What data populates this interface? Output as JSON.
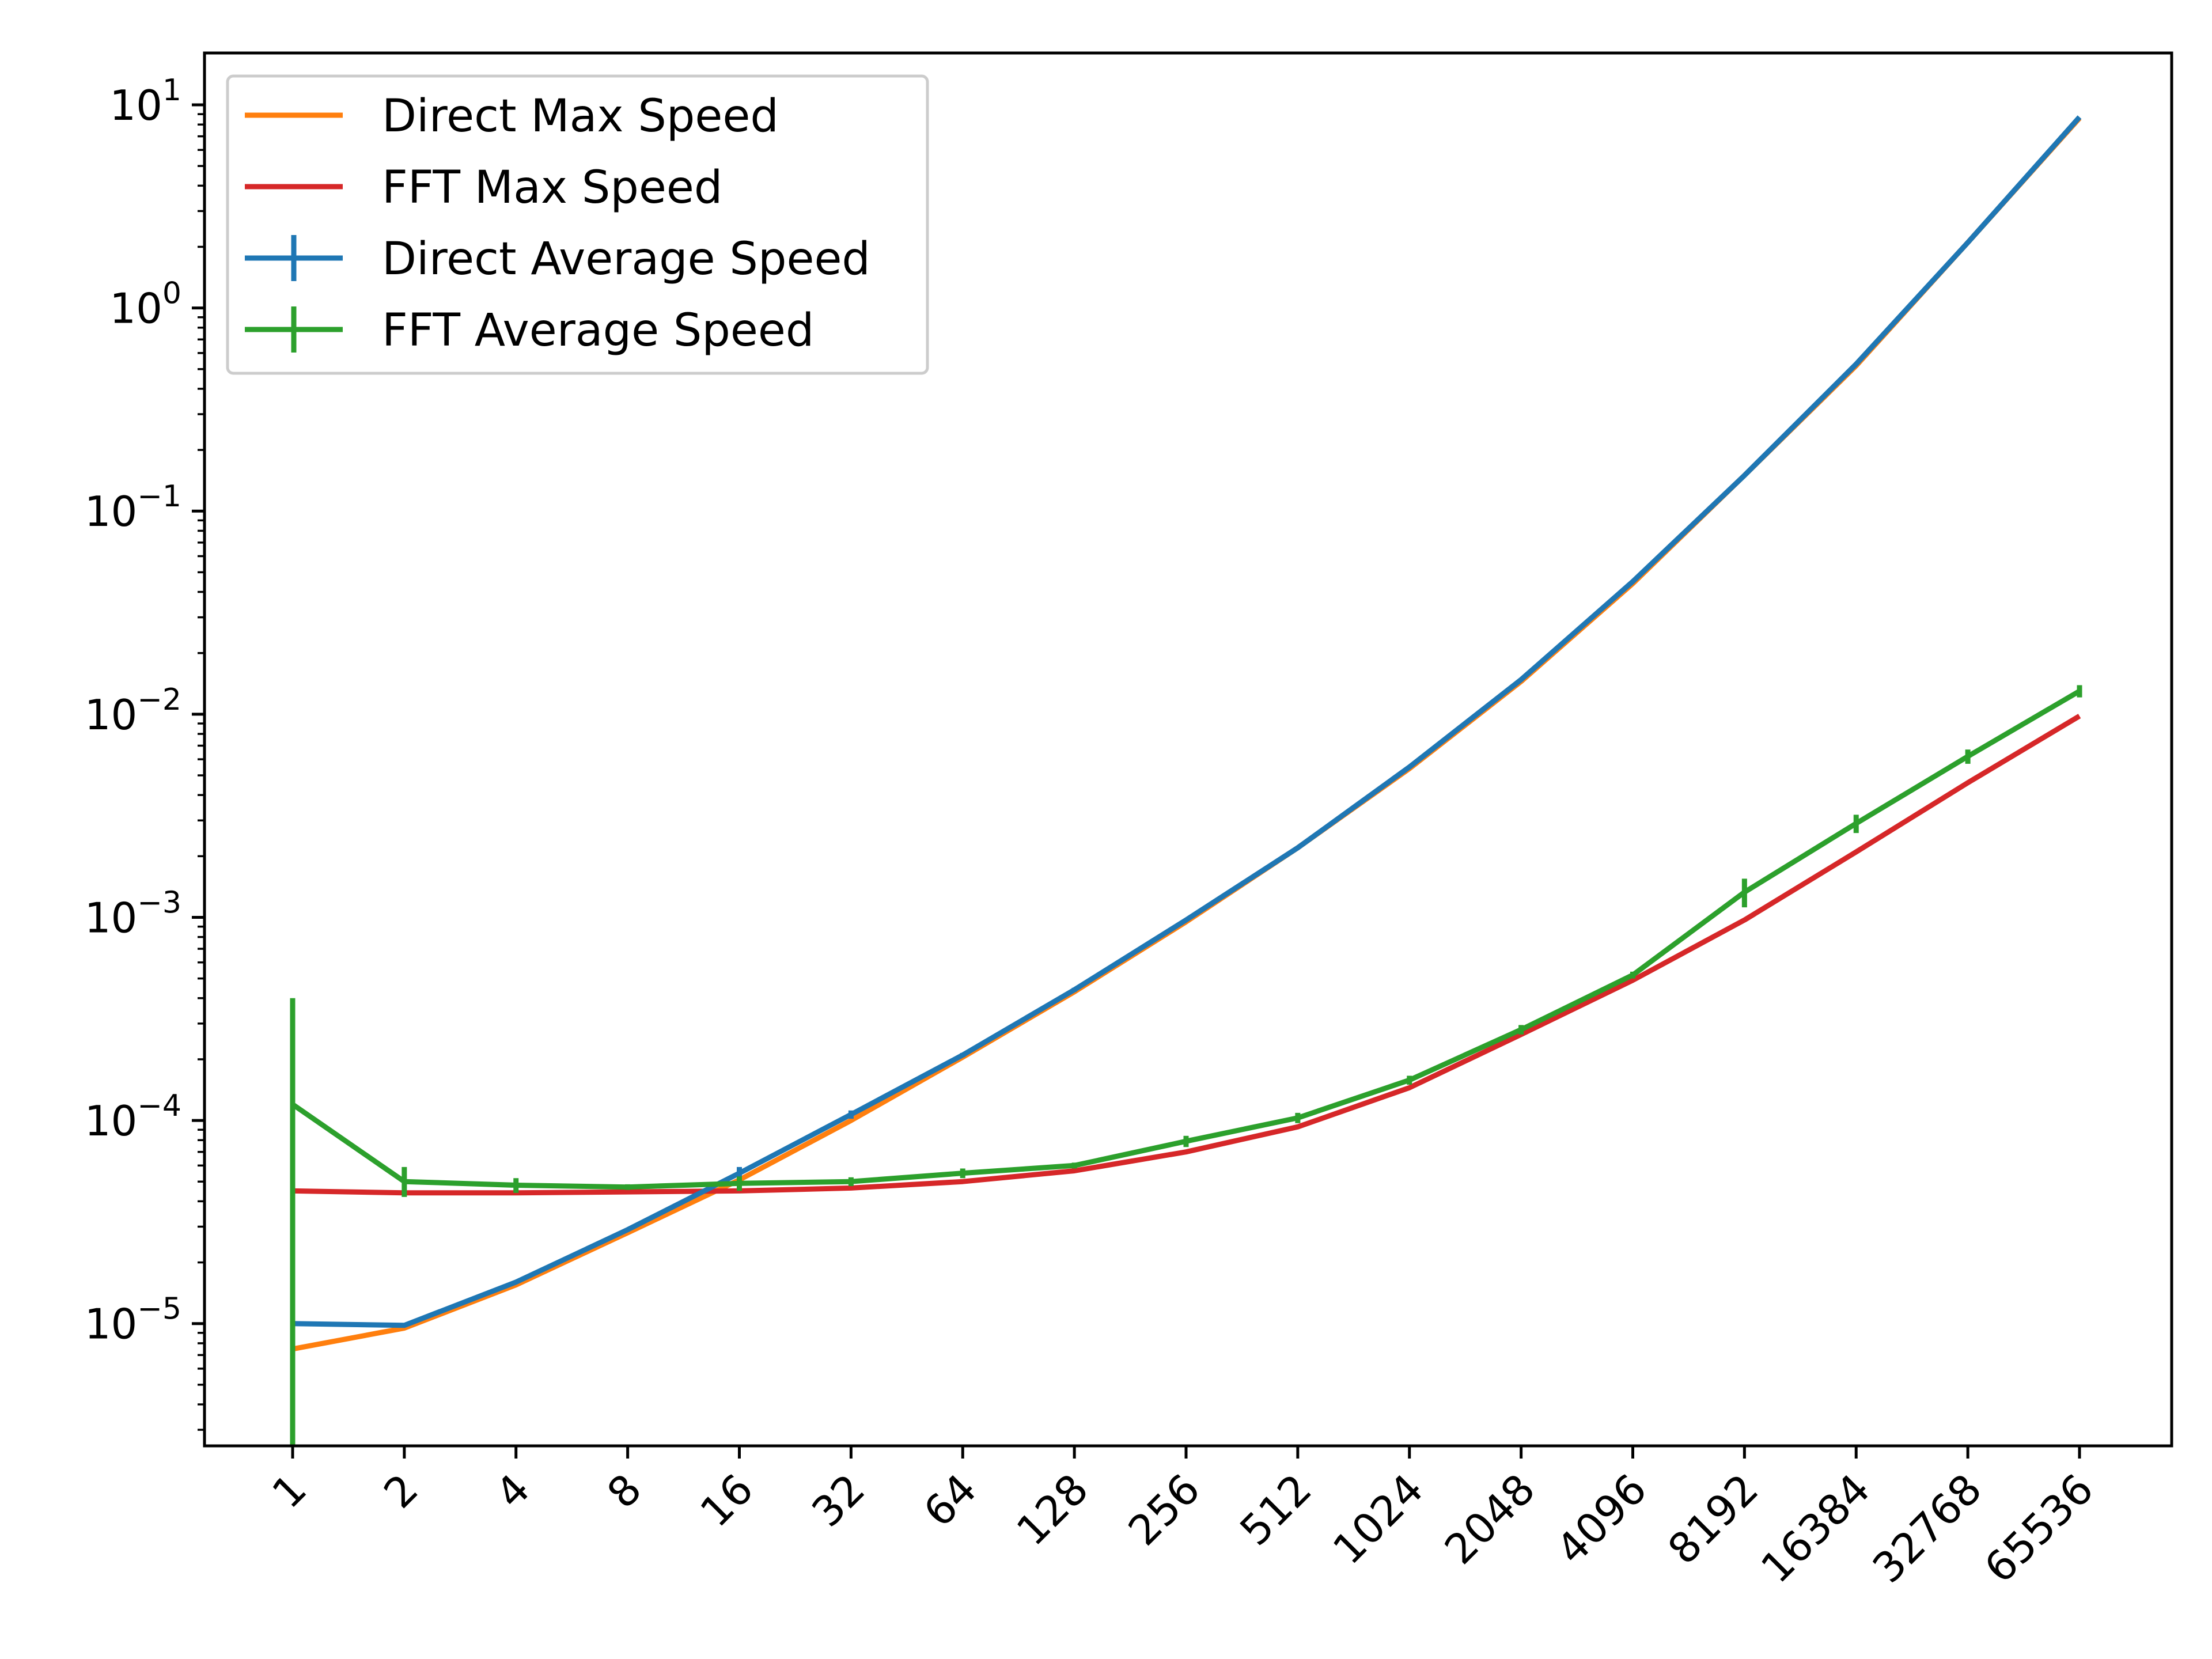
{
  "chart_data": {
    "type": "line",
    "title": "",
    "xlabel": "",
    "ylabel": "",
    "x_scale": "log2-categorical",
    "y_scale": "log",
    "categories": [
      "1",
      "2",
      "4",
      "8",
      "16",
      "32",
      "64",
      "128",
      "256",
      "512",
      "1024",
      "2048",
      "4096",
      "8192",
      "16384",
      "32768",
      "65536"
    ],
    "ylim": [
      2.5e-06,
      18
    ],
    "yticks": [
      {
        "base": "10",
        "exp": "−5",
        "value": 1e-05
      },
      {
        "base": "10",
        "exp": "−4",
        "value": 0.0001
      },
      {
        "base": "10",
        "exp": "−3",
        "value": 0.001
      },
      {
        "base": "10",
        "exp": "−2",
        "value": 0.01
      },
      {
        "base": "10",
        "exp": "−1",
        "value": 0.1
      },
      {
        "base": "10",
        "exp": "0",
        "value": 1
      },
      {
        "base": "10",
        "exp": "1",
        "value": 10
      }
    ],
    "grid": false,
    "legend_position": "top-left",
    "series": [
      {
        "name": "Direct Max Speed",
        "color": "#ff7f0e",
        "error_bars": false,
        "values": [
          7.5e-06,
          9.5e-06,
          1.55e-05,
          2.8e-05,
          5.1e-05,
          0.0001,
          0.000205,
          0.00043,
          0.00095,
          0.0022,
          0.0054,
          0.0145,
          0.044,
          0.15,
          0.52,
          2.1,
          8.6
        ]
      },
      {
        "name": "FFT Max Speed",
        "color": "#d62728",
        "error_bars": false,
        "values": [
          4.5e-05,
          4.4e-05,
          4.4e-05,
          4.45e-05,
          4.5e-05,
          4.65e-05,
          5e-05,
          5.65e-05,
          7e-05,
          9.3e-05,
          0.000145,
          0.000265,
          0.00049,
          0.00097,
          0.0021,
          0.0046,
          0.0098
        ]
      },
      {
        "name": "Direct Average Speed",
        "color": "#1f77b4",
        "error_bars": true,
        "values": [
          1e-05,
          9.8e-06,
          1.6e-05,
          2.9e-05,
          5.5e-05,
          0.000107,
          0.00021,
          0.00044,
          0.00097,
          0.0022,
          0.0055,
          0.0148,
          0.045,
          0.15,
          0.53,
          2.1,
          8.7
        ],
        "err_low": [
          1e-05,
          9.8e-06,
          1.6e-05,
          2.9e-05,
          5.1e-05,
          0.000102,
          0.000205,
          0.00043,
          0.00096,
          0.0022,
          0.0055,
          0.0148,
          0.045,
          0.15,
          0.53,
          2.1,
          8.7
        ],
        "err_high": [
          1e-05,
          9.8e-06,
          1.6e-05,
          2.9e-05,
          5.9e-05,
          0.000112,
          0.000215,
          0.00045,
          0.00098,
          0.0022,
          0.0055,
          0.0148,
          0.045,
          0.15,
          0.53,
          2.1,
          8.7
        ]
      },
      {
        "name": "FFT Average Speed",
        "color": "#2ca02c",
        "error_bars": true,
        "values": [
          0.00012,
          5e-05,
          4.8e-05,
          4.7e-05,
          4.9e-05,
          5e-05,
          5.5e-05,
          6e-05,
          7.9e-05,
          0.000103,
          0.000158,
          0.00028,
          0.00052,
          0.00133,
          0.0029,
          0.0062,
          0.013
        ],
        "err_low": [
          2.5e-06,
          4.2e-05,
          4.4e-05,
          4.55e-05,
          4.5e-05,
          4.75e-05,
          5.2e-05,
          5.8e-05,
          7.4e-05,
          9.7e-05,
          0.00015,
          0.000265,
          0.0005,
          0.00112,
          0.0026,
          0.0057,
          0.0121
        ],
        "err_high": [
          0.0004,
          5.9e-05,
          5.2e-05,
          4.85e-05,
          5.3e-05,
          5.25e-05,
          5.8e-05,
          6.2e-05,
          8.4e-05,
          0.000109,
          0.000166,
          0.000295,
          0.00054,
          0.00155,
          0.0032,
          0.0067,
          0.0139
        ]
      }
    ],
    "legend_order": [
      "Direct Max Speed",
      "FFT Max Speed",
      "Direct Average Speed",
      "FFT Average Speed"
    ]
  }
}
